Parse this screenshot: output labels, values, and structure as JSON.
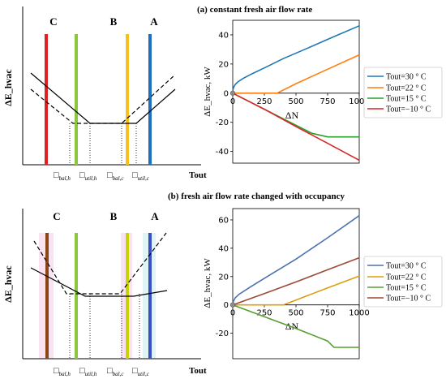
{
  "schematics": [
    {
      "ylabel": "ΔE_hvac",
      "xlabel": "Tout",
      "regions": [
        {
          "label": "C",
          "color": "#e02020"
        },
        {
          "label": "B",
          "color": "#f6c11b"
        },
        {
          "label": "A",
          "color": "#1f6fbf"
        }
      ],
      "green_color": "#8cc63f",
      "ticks": [
        {
          "main": "□",
          "sub": "bal,h"
        },
        {
          "main": "□",
          "sub": "util,h"
        },
        {
          "main": "□",
          "sub": "bal,c"
        },
        {
          "main": "□",
          "sub": "util,c"
        }
      ]
    },
    {
      "ylabel": "ΔE_hvac",
      "xlabel": "Tout",
      "regions": [
        {
          "label": "C",
          "color": "#8b4513"
        },
        {
          "label": "B",
          "color": "#c8d400"
        },
        {
          "label": "A",
          "color": "#3b4fc4"
        }
      ],
      "green_color": "#8cc63f",
      "ticks": [
        {
          "main": "□",
          "sub": "bal,h"
        },
        {
          "main": "□",
          "sub": "util,h"
        },
        {
          "main": "□",
          "sub": "bal,c"
        },
        {
          "main": "□",
          "sub": "util,c"
        }
      ]
    }
  ],
  "chart_data": [
    {
      "type": "line",
      "title": "(a) constant fresh air flow rate",
      "xlabel": "ΔN",
      "ylabel": "ΔE_hvac, kW",
      "xlim": [
        0,
        1000
      ],
      "ylim": [
        -48,
        50
      ],
      "xticks": [
        0,
        250,
        500,
        750,
        1000
      ],
      "yticks": [
        -40,
        -20,
        0,
        20,
        40
      ],
      "legend_position": "right",
      "series": [
        {
          "name": "Tout=30 ° C",
          "color": "#1f77b4",
          "x": [
            0,
            1,
            5,
            10,
            20,
            40,
            80,
            150,
            250,
            400,
            600,
            800,
            1000
          ],
          "y": [
            0,
            2,
            3.5,
            4.5,
            6,
            7.7,
            10,
            13.2,
            17.3,
            23.7,
            31.2,
            38.8,
            46.2
          ]
        },
        {
          "name": "Tout=22 ° C",
          "color": "#ff7f0e",
          "x": [
            0,
            350,
            500,
            750,
            1000
          ],
          "y": [
            0,
            0,
            6.5,
            16.4,
            26.3
          ]
        },
        {
          "name": "Tout=15 ° C",
          "color": "#2ca02c",
          "x": [
            0,
            250,
            500,
            625,
            750,
            1000
          ],
          "y": [
            0,
            -11,
            -22,
            -27.5,
            -30,
            -30
          ]
        },
        {
          "name": "Tout=−10 ° C",
          "color": "#d62728",
          "x": [
            0,
            250,
            500,
            750,
            1000
          ],
          "y": [
            0,
            -11,
            -22.9,
            -34.4,
            -46
          ]
        }
      ]
    },
    {
      "type": "line",
      "title": "(b) fresh air flow rate changed with occupancy",
      "xlabel": "ΔN",
      "ylabel": "ΔE_hvac, kW",
      "xlim": [
        0,
        1000
      ],
      "ylim": [
        -38,
        68
      ],
      "xticks": [
        0,
        250,
        500,
        750,
        1000
      ],
      "yticks": [
        -20,
        0,
        20,
        40,
        60
      ],
      "legend_position": "right",
      "series": [
        {
          "name": "Tout=30 ° C",
          "color": "#4c72b0",
          "x": [
            0,
            5,
            20,
            50,
            150,
            300,
            500,
            750,
            1000
          ],
          "y": [
            0,
            2.5,
            5,
            7.5,
            13.2,
            21.5,
            32.3,
            47.4,
            63
          ]
        },
        {
          "name": "Tout=22 ° C",
          "color": "#dd9d0f",
          "x": [
            0,
            400,
            500,
            750,
            1000
          ],
          "y": [
            0,
            0,
            3.4,
            12,
            20.4
          ]
        },
        {
          "name": "Tout=15 ° C",
          "color": "#55a030",
          "x": [
            0,
            250,
            500,
            750,
            800,
            1000
          ],
          "y": [
            0,
            -8.3,
            -16.6,
            -25.5,
            -30,
            -30
          ]
        },
        {
          "name": "Tout=−10 ° C",
          "color": "#9c4a36",
          "x": [
            0,
            250,
            500,
            750,
            1000
          ],
          "y": [
            0,
            8,
            16.2,
            24.8,
            33.3
          ]
        }
      ]
    }
  ]
}
